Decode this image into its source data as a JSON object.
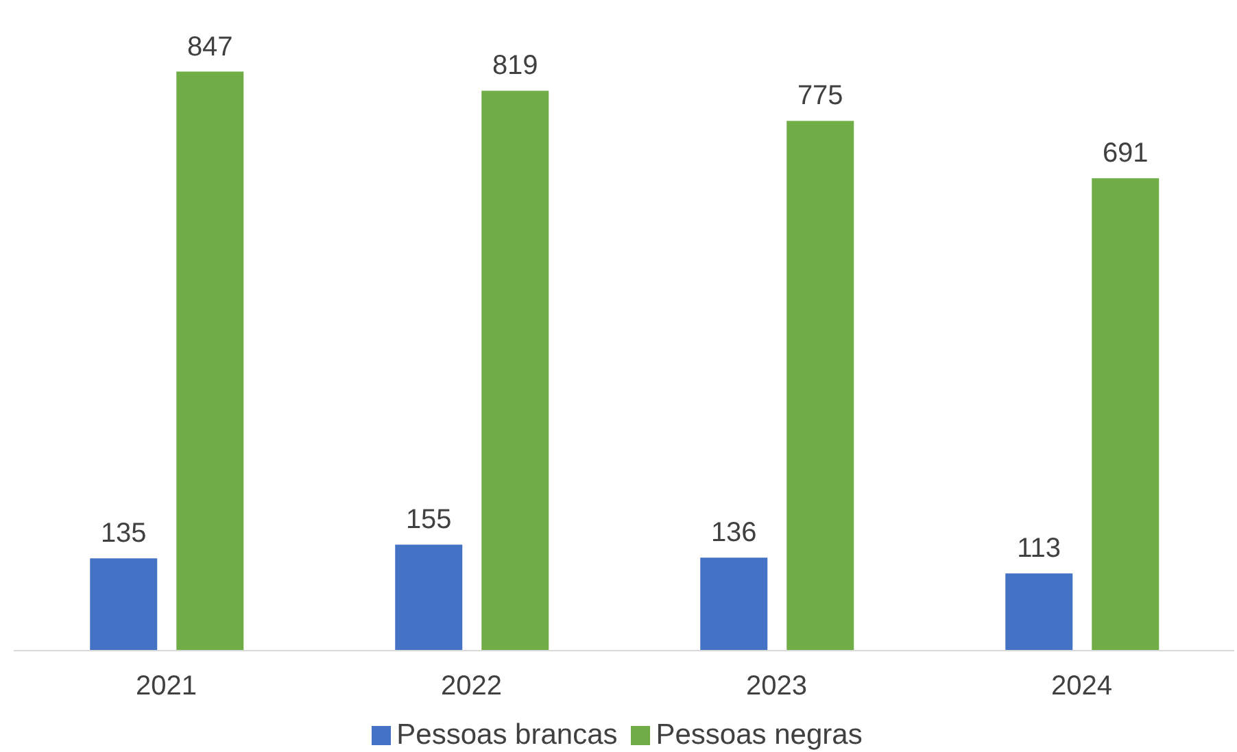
{
  "chart_data": {
    "type": "bar",
    "categories": [
      "2021",
      "2022",
      "2023",
      "2024"
    ],
    "series": [
      {
        "name": "Pessoas brancas",
        "color": "#4472c4",
        "values": [
          135,
          155,
          136,
          113
        ]
      },
      {
        "name": "Pessoas negras",
        "color": "#70ad47",
        "values": [
          847,
          819,
          775,
          691
        ]
      }
    ],
    "data_labels": true,
    "legend": "bottom",
    "grid": false
  }
}
